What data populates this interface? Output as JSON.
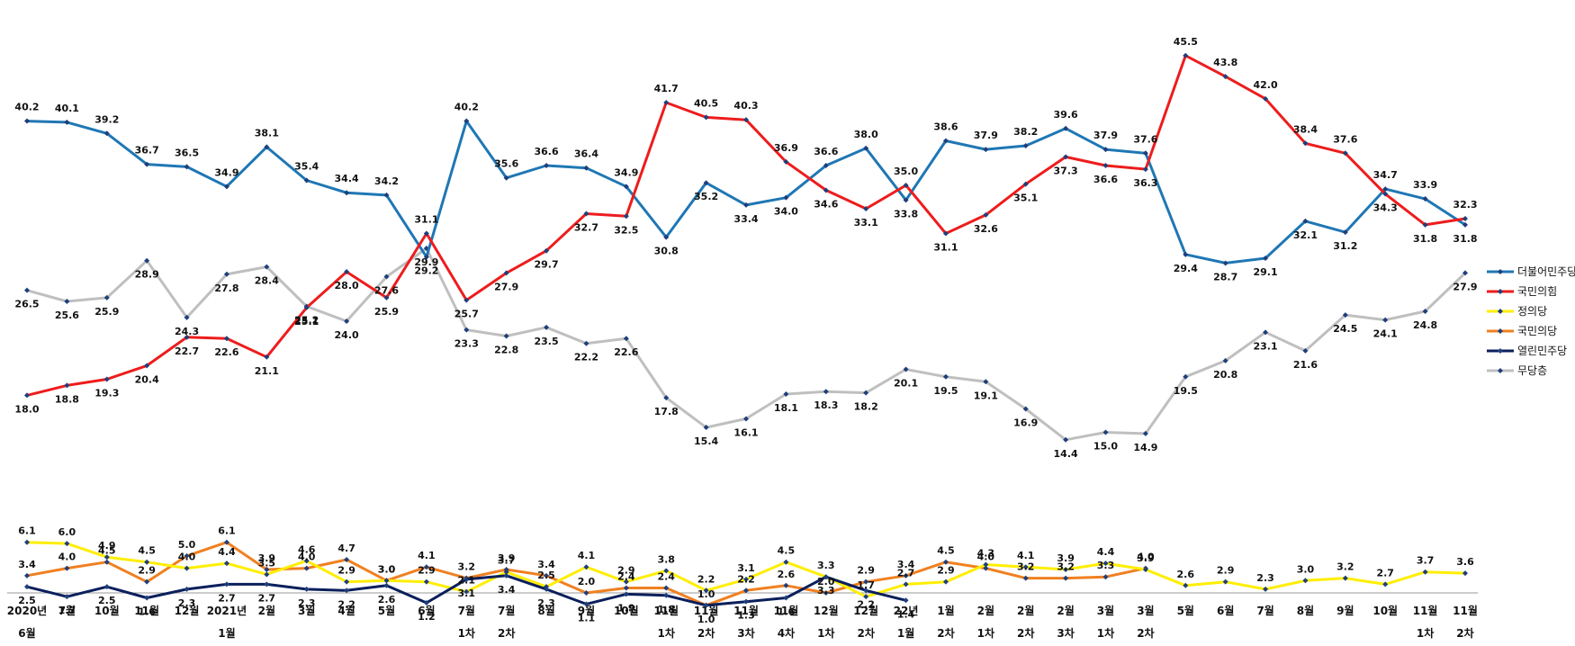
{
  "chart_data": {
    "type": "line",
    "title": "",
    "xlabel": "",
    "ylabel": "",
    "grid": false,
    "legend_position": "right",
    "ylim": [
      0,
      50
    ],
    "categories": [
      [
        "2020년",
        "6월"
      ],
      [
        "7월",
        ""
      ],
      [
        "10월",
        ""
      ],
      [
        "11월",
        ""
      ],
      [
        "12월",
        ""
      ],
      [
        "2021년",
        "1월"
      ],
      [
        "2월",
        ""
      ],
      [
        "3월",
        ""
      ],
      [
        "4월",
        ""
      ],
      [
        "5월",
        ""
      ],
      [
        "6월",
        ""
      ],
      [
        "7월",
        "1차"
      ],
      [
        "7월",
        "2차"
      ],
      [
        "8월",
        ""
      ],
      [
        "9월",
        ""
      ],
      [
        "10월",
        ""
      ],
      [
        "11월",
        "1차"
      ],
      [
        "11월",
        "2차"
      ],
      [
        "11월",
        "3차"
      ],
      [
        "11월",
        "4차"
      ],
      [
        "12월",
        "1차"
      ],
      [
        "12월",
        "2차"
      ],
      [
        "22년",
        "1월"
      ],
      [
        "1월",
        "2차"
      ],
      [
        "2월",
        "1차"
      ],
      [
        "2월",
        "2차"
      ],
      [
        "2월",
        "3차"
      ],
      [
        "3월",
        "1차"
      ],
      [
        "3월",
        "2차"
      ],
      [
        "5월",
        ""
      ],
      [
        "6월",
        ""
      ],
      [
        "7월",
        ""
      ],
      [
        "8월",
        ""
      ],
      [
        "9월",
        ""
      ],
      [
        "10월",
        ""
      ],
      [
        "11월",
        "1차"
      ],
      [
        "11월",
        "2차"
      ]
    ],
    "series": [
      {
        "name": "더불어민주당",
        "color": "#1f77b4",
        "values": [
          40.2,
          40.1,
          39.2,
          36.7,
          36.5,
          34.9,
          38.1,
          35.4,
          34.4,
          34.2,
          29.2,
          40.2,
          35.6,
          36.6,
          36.4,
          34.9,
          30.8,
          35.2,
          33.4,
          34.0,
          36.6,
          38.0,
          33.8,
          38.6,
          37.9,
          38.2,
          39.6,
          37.9,
          37.6,
          29.4,
          28.7,
          29.1,
          32.1,
          31.2,
          34.7,
          33.9,
          31.8
        ]
      },
      {
        "name": "국민의힘",
        "color": "#ee1c1c",
        "values": [
          18.0,
          18.8,
          19.3,
          20.4,
          22.7,
          22.6,
          21.1,
          25.1,
          28.0,
          25.9,
          31.1,
          25.7,
          27.9,
          29.7,
          32.7,
          32.5,
          41.7,
          40.5,
          40.3,
          36.9,
          34.6,
          33.1,
          35.0,
          31.1,
          32.6,
          35.1,
          37.3,
          36.6,
          36.3,
          45.5,
          43.8,
          42.0,
          38.4,
          37.6,
          34.3,
          31.8,
          32.3
        ]
      },
      {
        "name": "정의당",
        "color": "#ffee00",
        "values": [
          6.1,
          6.0,
          4.9,
          4.5,
          4.0,
          4.4,
          3.5,
          4.6,
          2.9,
          3.0,
          2.9,
          2.1,
          3.7,
          2.5,
          4.1,
          2.9,
          3.8,
          2.2,
          3.1,
          4.5,
          3.3,
          1.7,
          2.7,
          2.9,
          4.3,
          4.1,
          3.9,
          4.4,
          3.9,
          2.6,
          2.9,
          2.3,
          3.0,
          3.2,
          2.7,
          3.7,
          3.6
        ]
      },
      {
        "name": "국민의당",
        "color": "#f08020",
        "values": [
          3.4,
          4.0,
          4.5,
          2.9,
          5.0,
          6.1,
          3.9,
          4.0,
          4.7,
          3.0,
          4.1,
          3.2,
          3.9,
          3.4,
          2.0,
          2.4,
          2.4,
          1.0,
          2.2,
          2.6,
          2.0,
          2.9,
          3.4,
          4.5,
          4.0,
          3.2,
          3.2,
          3.3,
          4.0,
          null,
          null,
          null,
          null,
          null,
          null,
          null,
          null
        ]
      },
      {
        "name": "열린민주당",
        "color": "#0a1f5c",
        "values": [
          2.5,
          1.7,
          2.5,
          1.6,
          2.3,
          2.7,
          2.7,
          2.3,
          2.2,
          2.6,
          1.2,
          3.1,
          3.4,
          2.3,
          1.1,
          1.9,
          1.8,
          1.0,
          1.3,
          1.6,
          3.3,
          2.2,
          1.4,
          null,
          null,
          null,
          null,
          null,
          null,
          null,
          null,
          null,
          null,
          null,
          null,
          null,
          null
        ]
      },
      {
        "name": "무당층",
        "color": "#bfbfbf",
        "values": [
          26.5,
          25.6,
          25.9,
          28.9,
          24.3,
          27.8,
          28.4,
          25.2,
          24.0,
          27.6,
          29.9,
          23.3,
          22.8,
          23.5,
          22.2,
          22.6,
          17.8,
          15.4,
          16.1,
          18.1,
          18.3,
          18.2,
          20.1,
          19.5,
          19.1,
          16.9,
          14.4,
          15.0,
          14.9,
          19.5,
          20.8,
          23.1,
          21.6,
          24.5,
          24.1,
          24.8,
          27.9
        ]
      }
    ]
  }
}
